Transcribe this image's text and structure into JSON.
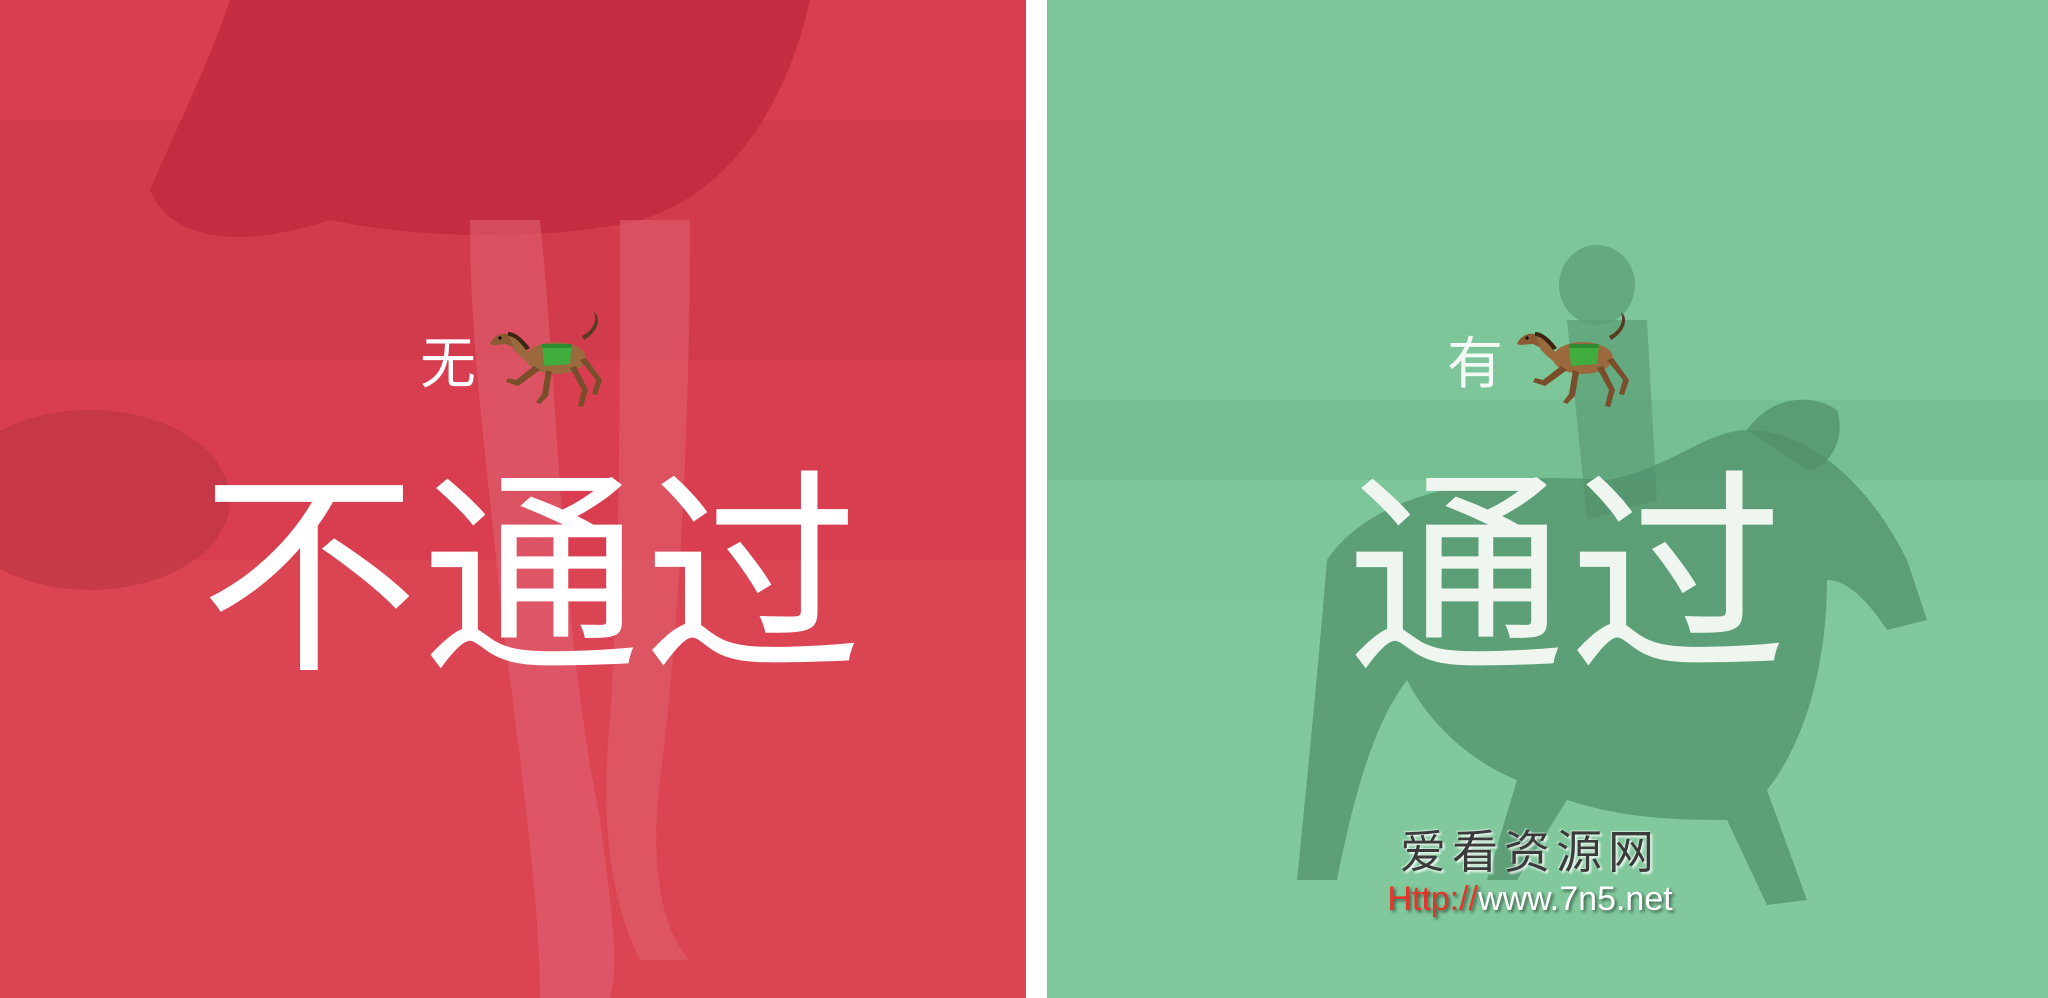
{
  "left_panel": {
    "small_text": "无",
    "icon": "racing-horse-icon",
    "big_text": "不通过",
    "color": "#d83e4f"
  },
  "right_panel": {
    "small_text": "有",
    "icon": "racing-horse-icon",
    "big_text": "通过",
    "color": "#7dc699"
  },
  "watermark": {
    "title": "爱看资源网",
    "url_prefix": "Http://",
    "url_rest": "www.7n5.net",
    "prefix_color": "#e5352b"
  }
}
